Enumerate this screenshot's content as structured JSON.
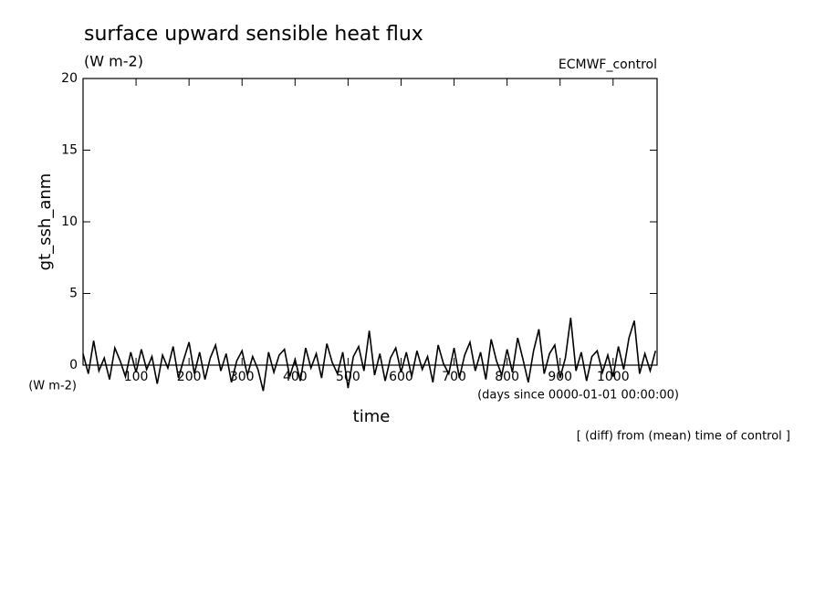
{
  "chart_data": {
    "type": "line",
    "title": "surface upward sensible heat flux",
    "subtitle": "(W m-2)",
    "annotation_right": "ECMWF_control",
    "ylabel": "gt_ssh_anm",
    "yunits": "(W m-2)",
    "xlabel": "time",
    "xunits": "(days since 0000-01-01 00:00:00)",
    "note": "[ (diff) from (mean) time of control ]",
    "xlim": [
      0,
      1083
    ],
    "ylim": [
      0,
      20
    ],
    "xticks": [
      100,
      200,
      300,
      400,
      500,
      600,
      700,
      800,
      900,
      1000
    ],
    "yticks": [
      0,
      5,
      10,
      15,
      20
    ],
    "x": [
      0,
      10,
      20,
      30,
      40,
      50,
      60,
      70,
      80,
      90,
      100,
      110,
      120,
      130,
      140,
      150,
      160,
      170,
      180,
      190,
      200,
      210,
      220,
      230,
      240,
      250,
      260,
      270,
      280,
      290,
      300,
      310,
      320,
      330,
      340,
      350,
      360,
      370,
      380,
      390,
      400,
      410,
      420,
      430,
      440,
      450,
      460,
      470,
      480,
      490,
      500,
      510,
      520,
      530,
      540,
      550,
      560,
      570,
      580,
      590,
      600,
      610,
      620,
      630,
      640,
      650,
      660,
      670,
      680,
      690,
      700,
      710,
      720,
      730,
      740,
      750,
      760,
      770,
      780,
      790,
      800,
      810,
      820,
      830,
      840,
      850,
      860,
      870,
      880,
      890,
      900,
      910,
      920,
      930,
      940,
      950,
      960,
      970,
      980,
      990,
      1000,
      1010,
      1020,
      1030,
      1040,
      1050,
      1060,
      1070,
      1080
    ],
    "series": [
      {
        "color": "#000000",
        "values": [
          0.8,
          -0.6,
          1.7,
          -0.4,
          0.5,
          -1.0,
          1.2,
          0.3,
          -0.8,
          0.9,
          -0.5,
          1.1,
          -0.3,
          0.6,
          -1.3,
          0.7,
          -0.2,
          1.3,
          -0.9,
          0.4,
          1.6,
          -0.6,
          0.9,
          -1.0,
          0.5,
          1.4,
          -0.4,
          0.8,
          -1.2,
          0.3,
          1.0,
          -0.7,
          0.6,
          -0.3,
          -1.8,
          0.9,
          -0.5,
          0.7,
          1.1,
          -0.8,
          0.4,
          -1.1,
          1.2,
          -0.2,
          0.8,
          -0.9,
          1.5,
          0.2,
          -0.6,
          0.9,
          -1.6,
          0.6,
          1.3,
          -0.4,
          2.4,
          -0.7,
          0.8,
          -1.1,
          0.5,
          1.2,
          -0.5,
          0.9,
          -0.8,
          1.0,
          -0.3,
          0.6,
          -1.2,
          1.4,
          0.1,
          -0.6,
          1.2,
          -0.9,
          0.7,
          1.6,
          -0.4,
          0.9,
          -1.0,
          1.8,
          0.3,
          -0.7,
          1.1,
          -0.5,
          1.9,
          0.4,
          -1.2,
          1.0,
          2.5,
          -0.6,
          0.8,
          1.4,
          -0.9,
          0.5,
          3.3,
          -0.4,
          0.9,
          -1.1,
          0.6,
          1.0,
          -0.5,
          0.7,
          -0.8,
          1.3,
          -0.3,
          1.9,
          3.1,
          -0.6,
          0.8,
          -0.4,
          1.0
        ]
      }
    ]
  }
}
